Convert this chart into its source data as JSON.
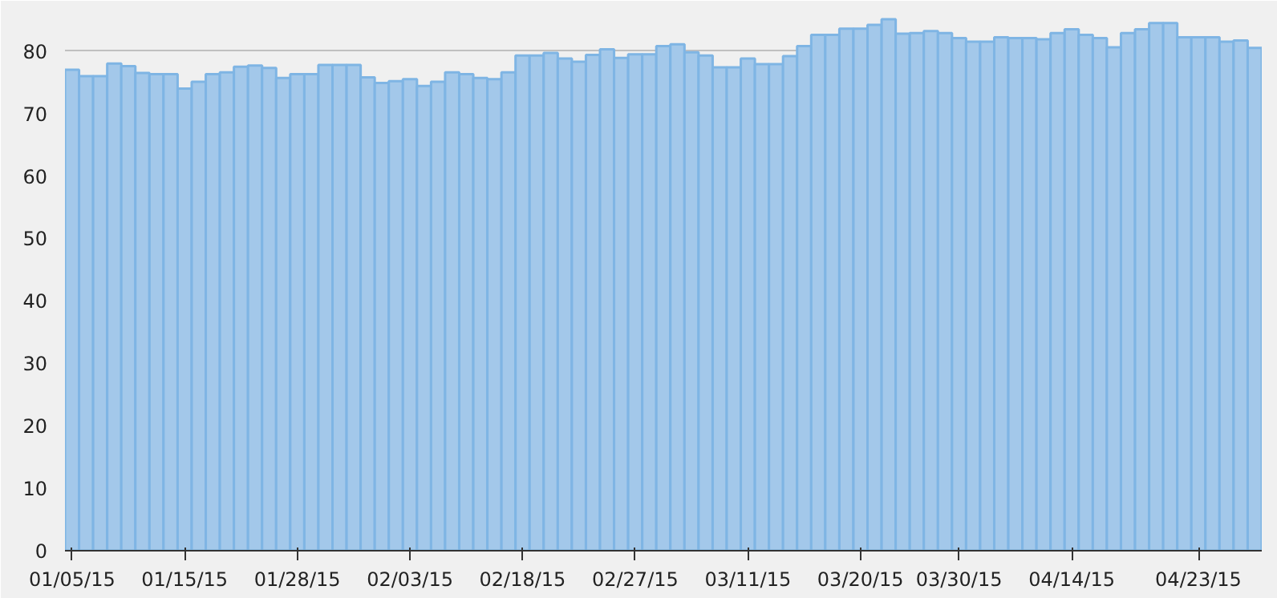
{
  "chart_data": {
    "type": "bar",
    "color": "#a3c8ea",
    "categories": [
      "01/05/15",
      null,
      null,
      null,
      null,
      null,
      null,
      null,
      "01/15/15",
      null,
      null,
      null,
      null,
      null,
      null,
      null,
      "01/28/15",
      null,
      null,
      null,
      null,
      null,
      null,
      null,
      "02/03/15",
      null,
      null,
      null,
      null,
      null,
      null,
      null,
      "02/18/15",
      null,
      null,
      null,
      null,
      null,
      null,
      null,
      "02/27/15",
      null,
      null,
      null,
      null,
      null,
      null,
      null,
      "03/11/15",
      null,
      null,
      null,
      null,
      null,
      null,
      null,
      "03/20/15",
      null,
      null,
      null,
      null,
      null,
      null,
      "03/30/15",
      null,
      null,
      null,
      null,
      null,
      null,
      null,
      "04/14/15",
      null,
      null,
      null,
      null,
      null,
      null,
      null,
      null,
      "04/23/15",
      null,
      null,
      null,
      null
    ],
    "values": [
      77.0,
      76.0,
      76.0,
      78.0,
      77.6,
      76.5,
      76.3,
      76.3,
      74.0,
      75.1,
      76.3,
      76.6,
      77.5,
      77.7,
      77.3,
      75.7,
      76.3,
      76.3,
      77.8,
      77.8,
      77.8,
      75.8,
      74.9,
      75.2,
      75.5,
      74.4,
      75.1,
      76.6,
      76.3,
      75.7,
      75.5,
      76.6,
      79.3,
      79.3,
      79.7,
      78.8,
      78.3,
      79.4,
      80.3,
      78.9,
      79.5,
      79.5,
      80.8,
      81.1,
      79.8,
      79.3,
      77.4,
      77.4,
      78.8,
      77.9,
      77.9,
      79.2,
      80.8,
      82.6,
      82.6,
      83.6,
      83.6,
      84.2,
      85.1,
      82.8,
      82.9,
      83.2,
      82.9,
      82.1,
      81.5,
      81.5,
      82.2,
      82.1,
      82.1,
      81.9,
      82.9,
      83.5,
      82.6,
      82.1,
      80.6,
      82.9,
      83.5,
      84.5,
      84.5,
      82.2,
      82.2,
      82.2,
      81.5,
      81.7,
      80.5
    ],
    "ylim": [
      0,
      86
    ],
    "yticks": [
      0,
      10,
      20,
      30,
      40,
      50,
      60,
      70,
      80
    ],
    "grid": "y"
  }
}
